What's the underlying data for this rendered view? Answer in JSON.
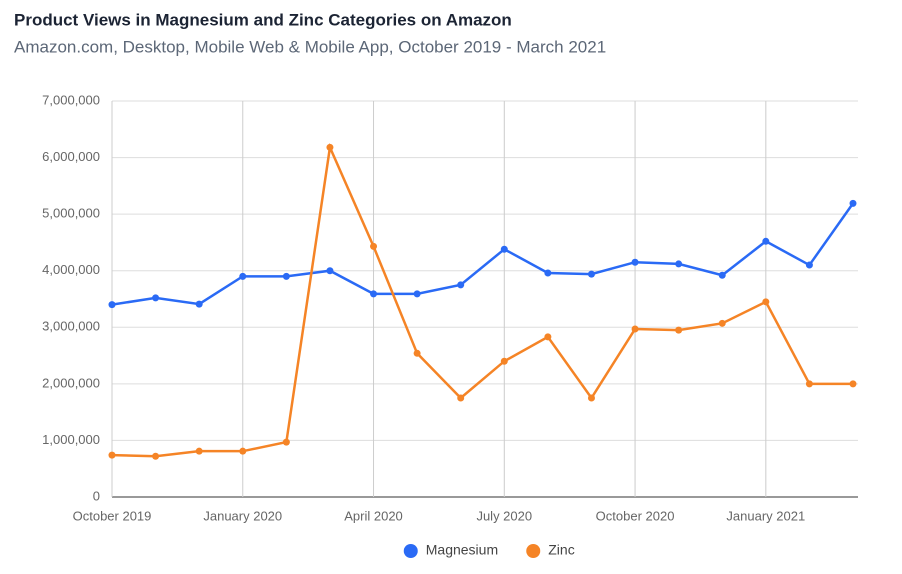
{
  "chart_data": {
    "type": "line",
    "title": "Product Views in Magnesium and Zinc Categories on Amazon",
    "subtitle": "Amazon.com, Desktop, Mobile Web & Mobile App, October 2019 - March 2021",
    "categories": [
      "October 2019",
      null,
      null,
      "January 2020",
      null,
      null,
      "April 2020",
      null,
      null,
      "July 2020",
      null,
      null,
      "October 2020",
      null,
      null,
      "January 2021",
      null,
      null
    ],
    "series": [
      {
        "name": "Magnesium",
        "color": "#2a6af5",
        "values": [
          3400000,
          3520000,
          3410000,
          3900000,
          3900000,
          4000000,
          3590000,
          3590000,
          3750000,
          4380000,
          3960000,
          3940000,
          4150000,
          4120000,
          3920000,
          4520000,
          4100000,
          5190000
        ]
      },
      {
        "name": "Zinc",
        "color": "#f58426",
        "values": [
          740000,
          720000,
          810000,
          810000,
          970000,
          6180000,
          4430000,
          2540000,
          1750000,
          2400000,
          2830000,
          1750000,
          2970000,
          2950000,
          3070000,
          3450000,
          2000000,
          2000000
        ]
      }
    ],
    "ylim": [
      0,
      7000000
    ],
    "yticks": [
      {
        "value": 0,
        "label": "0"
      },
      {
        "value": 1000000,
        "label": "1,000,000"
      },
      {
        "value": 2000000,
        "label": "2,000,000"
      },
      {
        "value": 3000000,
        "label": "3,000,000"
      },
      {
        "value": 4000000,
        "label": "4,000,000"
      },
      {
        "value": 5000000,
        "label": "5,000,000"
      },
      {
        "value": 6000000,
        "label": "6,000,000"
      },
      {
        "value": 7000000,
        "label": "7,000,000"
      }
    ],
    "grid": true,
    "legend": "bottom"
  }
}
